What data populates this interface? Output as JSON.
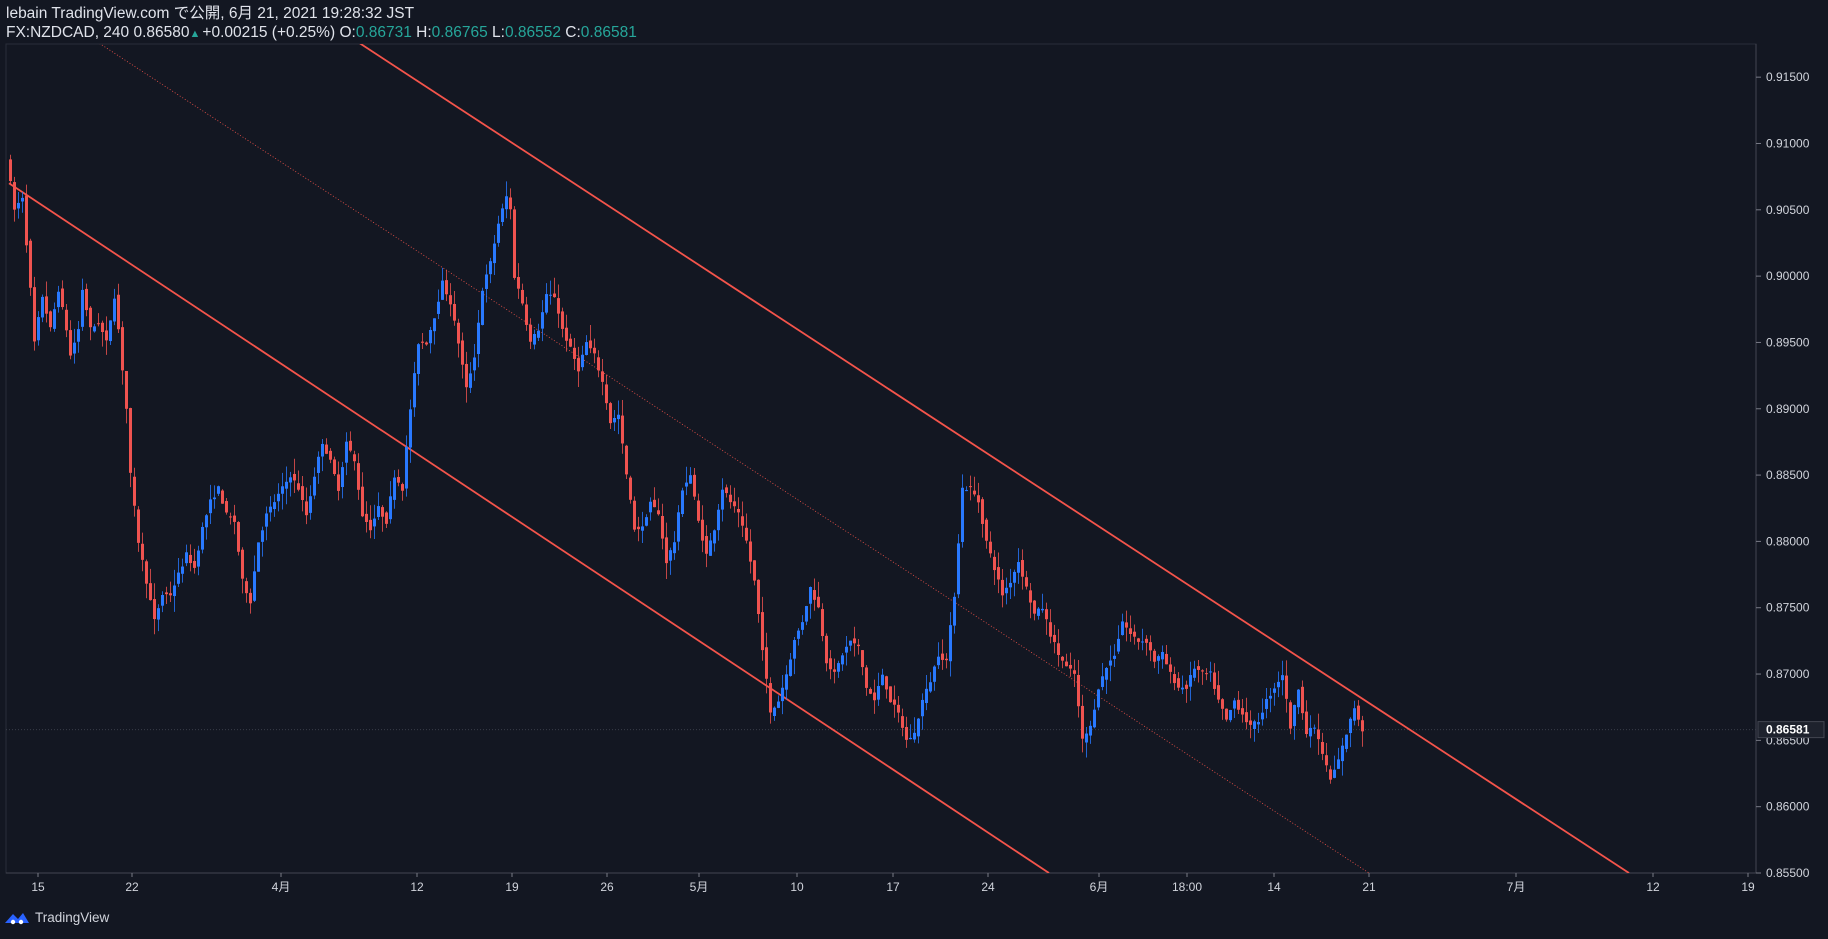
{
  "header": {
    "line1": "lebain TradingView.com で公開, 6月 21, 2021 19:28:32 JST",
    "symbol": "FX:NZDCAD, 240",
    "last": "0.86580",
    "change": "+0.00215 (+0.25%)",
    "o_label": "O:",
    "o_value": "0.86731",
    "h_label": "H:",
    "h_value": "0.86765",
    "l_label": "L:",
    "l_value": "0.86552",
    "c_label": "C:",
    "c_value": "0.86581"
  },
  "footer": {
    "brand": "TradingView",
    "icon": "tradingview-logo-icon"
  },
  "colors": {
    "background": "#131722",
    "up": "#2979ff",
    "down": "#ef5350",
    "channel": "#f4544b",
    "axis_text": "#d1d4dc",
    "teal": "#26a69a"
  },
  "chart_data": {
    "type": "candlestick",
    "symbol": "FX:NZDCAD",
    "interval": "240",
    "ylim": [
      0.855,
      0.9175
    ],
    "y_ticks": [
      "0.91500",
      "0.91000",
      "0.90500",
      "0.90000",
      "0.89500",
      "0.89000",
      "0.88500",
      "0.88000",
      "0.87500",
      "0.87000",
      "0.86500",
      "0.86000",
      "0.85500"
    ],
    "x_ticks": [
      "15",
      "22",
      "4月",
      "12",
      "19",
      "26",
      "5月",
      "10",
      "17",
      "24",
      "6月",
      "18:00",
      "14",
      "21",
      "7月",
      "12",
      "19"
    ],
    "last_price_label": "0.86581",
    "price_path": [
      [
        0,
        0.909
      ],
      [
        2,
        0.905
      ],
      [
        4,
        0.906
      ],
      [
        6,
        0.899
      ],
      [
        7,
        0.895
      ],
      [
        9,
        0.8985
      ],
      [
        11,
        0.896
      ],
      [
        13,
        0.899
      ],
      [
        15,
        0.896
      ],
      [
        16,
        0.894
      ],
      [
        18,
        0.896
      ],
      [
        19,
        0.899
      ],
      [
        21,
        0.896
      ],
      [
        23,
        0.8965
      ],
      [
        25,
        0.895
      ],
      [
        27,
        0.8985
      ],
      [
        28,
        0.896
      ],
      [
        30,
        0.89
      ],
      [
        31,
        0.885
      ],
      [
        33,
        0.88
      ],
      [
        35,
        0.877
      ],
      [
        37,
        0.874
      ],
      [
        39,
        0.876
      ],
      [
        41,
        0.876
      ],
      [
        43,
        0.8775
      ],
      [
        45,
        0.879
      ],
      [
        47,
        0.878
      ],
      [
        49,
        0.881
      ],
      [
        51,
        0.883
      ],
      [
        53,
        0.884
      ],
      [
        55,
        0.882
      ],
      [
        57,
        0.8815
      ],
      [
        59,
        0.877
      ],
      [
        61,
        0.8755
      ],
      [
        63,
        0.88
      ],
      [
        65,
        0.882
      ],
      [
        67,
        0.883
      ],
      [
        69,
        0.884
      ],
      [
        71,
        0.885
      ],
      [
        73,
        0.884
      ],
      [
        75,
        0.882
      ],
      [
        77,
        0.885
      ],
      [
        79,
        0.8875
      ],
      [
        81,
        0.886
      ],
      [
        83,
        0.884
      ],
      [
        85,
        0.8875
      ],
      [
        87,
        0.886
      ],
      [
        89,
        0.882
      ],
      [
        91,
        0.881
      ],
      [
        93,
        0.8825
      ],
      [
        95,
        0.8815
      ],
      [
        97,
        0.885
      ],
      [
        99,
        0.884
      ],
      [
        101,
        0.89
      ],
      [
        103,
        0.895
      ],
      [
        105,
        0.895
      ],
      [
        107,
        0.897
      ],
      [
        109,
        0.8995
      ],
      [
        111,
        0.898
      ],
      [
        113,
        0.895
      ],
      [
        115,
        0.8915
      ],
      [
        117,
        0.894
      ],
      [
        119,
        0.899
      ],
      [
        121,
        0.901
      ],
      [
        123,
        0.904
      ],
      [
        125,
        0.906
      ],
      [
        126,
        0.905
      ],
      [
        127,
        0.9
      ],
      [
        129,
        0.898
      ],
      [
        131,
        0.895
      ],
      [
        133,
        0.896
      ],
      [
        135,
        0.8985
      ],
      [
        137,
        0.8985
      ],
      [
        139,
        0.896
      ],
      [
        141,
        0.8945
      ],
      [
        143,
        0.893
      ],
      [
        145,
        0.895
      ],
      [
        147,
        0.894
      ],
      [
        149,
        0.892
      ],
      [
        151,
        0.889
      ],
      [
        153,
        0.8895
      ],
      [
        155,
        0.885
      ],
      [
        157,
        0.881
      ],
      [
        159,
        0.881
      ],
      [
        161,
        0.883
      ],
      [
        163,
        0.882
      ],
      [
        165,
        0.8785
      ],
      [
        167,
        0.88
      ],
      [
        169,
        0.884
      ],
      [
        171,
        0.885
      ],
      [
        173,
        0.8815
      ],
      [
        175,
        0.879
      ],
      [
        177,
        0.881
      ],
      [
        179,
        0.884
      ],
      [
        181,
        0.883
      ],
      [
        183,
        0.882
      ],
      [
        185,
        0.88
      ],
      [
        187,
        0.877
      ],
      [
        189,
        0.872
      ],
      [
        191,
        0.867
      ],
      [
        193,
        0.868
      ],
      [
        195,
        0.87
      ],
      [
        197,
        0.8725
      ],
      [
        199,
        0.874
      ],
      [
        201,
        0.8765
      ],
      [
        203,
        0.875
      ],
      [
        205,
        0.871
      ],
      [
        207,
        0.87
      ],
      [
        209,
        0.8715
      ],
      [
        211,
        0.8725
      ],
      [
        213,
        0.872
      ],
      [
        215,
        0.869
      ],
      [
        217,
        0.868
      ],
      [
        219,
        0.87
      ],
      [
        221,
        0.868
      ],
      [
        223,
        0.867
      ],
      [
        225,
        0.865
      ],
      [
        227,
        0.8655
      ],
      [
        229,
        0.868
      ],
      [
        231,
        0.8695
      ],
      [
        233,
        0.8715
      ],
      [
        235,
        0.871
      ],
      [
        237,
        0.876
      ],
      [
        239,
        0.884
      ],
      [
        241,
        0.884
      ],
      [
        243,
        0.883
      ],
      [
        245,
        0.88
      ],
      [
        247,
        0.878
      ],
      [
        249,
        0.876
      ],
      [
        251,
        0.877
      ],
      [
        253,
        0.8785
      ],
      [
        255,
        0.8765
      ],
      [
        257,
        0.8745
      ],
      [
        259,
        0.875
      ],
      [
        261,
        0.873
      ],
      [
        263,
        0.8715
      ],
      [
        265,
        0.8705
      ],
      [
        267,
        0.87
      ],
      [
        269,
        0.865
      ],
      [
        271,
        0.866
      ],
      [
        273,
        0.869
      ],
      [
        275,
        0.8705
      ],
      [
        277,
        0.8715
      ],
      [
        279,
        0.874
      ],
      [
        281,
        0.873
      ],
      [
        283,
        0.8725
      ],
      [
        285,
        0.8725
      ],
      [
        287,
        0.871
      ],
      [
        289,
        0.8715
      ],
      [
        291,
        0.87
      ],
      [
        293,
        0.869
      ],
      [
        295,
        0.869
      ],
      [
        297,
        0.8705
      ],
      [
        299,
        0.87
      ],
      [
        301,
        0.87
      ],
      [
        303,
        0.868
      ],
      [
        305,
        0.8665
      ],
      [
        307,
        0.868
      ],
      [
        309,
        0.867
      ],
      [
        311,
        0.866
      ],
      [
        313,
        0.8665
      ],
      [
        315,
        0.868
      ],
      [
        317,
        0.869
      ],
      [
        319,
        0.87
      ],
      [
        320,
        0.868
      ],
      [
        321,
        0.866
      ],
      [
        323,
        0.869
      ],
      [
        325,
        0.8655
      ],
      [
        327,
        0.866
      ],
      [
        329,
        0.864
      ],
      [
        331,
        0.862
      ],
      [
        333,
        0.8635
      ],
      [
        335,
        0.8655
      ],
      [
        337,
        0.8675
      ],
      [
        339,
        0.8658
      ]
    ],
    "channel_lines": [
      {
        "name": "upper",
        "from": [
          55,
          0.924
        ],
        "to": [
          405,
          0.855
        ]
      },
      {
        "name": "lower",
        "from": [
          0,
          0.907
        ],
        "to": [
          260,
          0.855
        ]
      },
      {
        "name": "mid",
        "from": [
          0,
          0.922
        ],
        "to": [
          340,
          0.855
        ],
        "style": "dotted"
      }
    ],
    "current_price": 0.86581,
    "grid": false,
    "legend": "none"
  }
}
